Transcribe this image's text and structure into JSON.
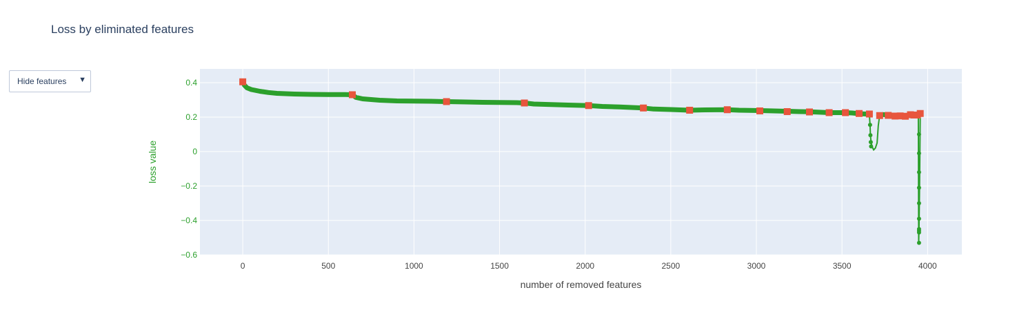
{
  "title": "Loss by eliminated features",
  "dropdown": {
    "label": "Hide features",
    "arrow": "▼"
  },
  "colors": {
    "line": "#2ca02c",
    "marker_highlight": "#e8553d",
    "plot_bg": "#e5ecf6",
    "grid": "#ffffff",
    "axis_text": "#444444",
    "ylabel_color": "#2ca02c",
    "title_color": "#2a3f5f"
  },
  "chart_data": {
    "type": "line",
    "title": "Loss by eliminated features",
    "xlabel": "number of removed features",
    "ylabel": "loss value",
    "xlim": [
      -250,
      4200
    ],
    "ylim": [
      -0.6,
      0.48
    ],
    "xticks": [
      0,
      500,
      1000,
      1500,
      2000,
      2500,
      3000,
      3500,
      4000
    ],
    "yticks": [
      0.4,
      0.2,
      0,
      -0.2,
      -0.4,
      -0.6
    ],
    "xtick_labels": [
      "0",
      "500",
      "1000",
      "1500",
      "2000",
      "2500",
      "3000",
      "3500",
      "4000"
    ],
    "ytick_labels": [
      "0.4",
      "0.2",
      "0",
      "−0.2",
      "−0.4",
      "−0.6"
    ],
    "series": [
      {
        "name": "loss",
        "x": [
          0,
          10,
          25,
          50,
          100,
          150,
          200,
          300,
          400,
          500,
          600,
          640,
          660,
          700,
          800,
          900,
          1000,
          1100,
          1190,
          1300,
          1400,
          1500,
          1600,
          1645,
          1700,
          1800,
          1900,
          2020,
          2100,
          2200,
          2340,
          2400,
          2500,
          2610,
          2700,
          2830,
          2900,
          3020,
          3100,
          3180,
          3250,
          3310,
          3380,
          3425,
          3470,
          3520,
          3560,
          3600,
          3640,
          3660,
          3664,
          3666,
          3670,
          3675,
          3685,
          3695,
          3705,
          3712,
          3720,
          3740,
          3770,
          3800,
          3820,
          3840,
          3860,
          3880,
          3900,
          3910,
          3920,
          3930,
          3940,
          3946,
          3948,
          3950,
          3952,
          3954,
          3956,
          3957
        ],
        "values": [
          0.405,
          0.385,
          0.37,
          0.36,
          0.35,
          0.343,
          0.338,
          0.334,
          0.332,
          0.331,
          0.331,
          0.33,
          0.315,
          0.306,
          0.298,
          0.294,
          0.293,
          0.292,
          0.29,
          0.288,
          0.286,
          0.285,
          0.284,
          0.282,
          0.276,
          0.273,
          0.27,
          0.267,
          0.262,
          0.259,
          0.253,
          0.247,
          0.244,
          0.24,
          0.242,
          0.243,
          0.24,
          0.238,
          0.236,
          0.234,
          0.232,
          0.231,
          0.228,
          0.226,
          0.226,
          0.226,
          0.224,
          0.22,
          0.218,
          0.215,
          0.153,
          0.095,
          0.055,
          0.03,
          0.01,
          0.02,
          0.05,
          0.15,
          0.21,
          0.215,
          0.212,
          0.208,
          0.205,
          0.205,
          0.207,
          0.21,
          0.215,
          0.217,
          0.212,
          0.208,
          0.215,
          0.22,
          -0.53,
          -0.45,
          -0.3,
          -0.12,
          0.1,
          0.22
        ]
      }
    ],
    "highlighted_points": {
      "x": [
        0,
        640,
        1190,
        1645,
        2020,
        2340,
        2610,
        2830,
        3020,
        3180,
        3310,
        3425,
        3520,
        3600,
        3660,
        3720,
        3770,
        3810,
        3840,
        3870,
        3900,
        3920,
        3940,
        3957
      ],
      "values": [
        0.405,
        0.33,
        0.29,
        0.282,
        0.267,
        0.253,
        0.24,
        0.243,
        0.236,
        0.232,
        0.23,
        0.226,
        0.226,
        0.221,
        0.218,
        0.209,
        0.21,
        0.206,
        0.207,
        0.205,
        0.214,
        0.212,
        0.212,
        0.221
      ]
    },
    "dot_points": {
      "x": [
        3664,
        3666,
        3668,
        3670,
        3950,
        3950,
        3950,
        3950,
        3950,
        3950,
        3950,
        3950,
        3950,
        3950
      ],
      "values": [
        0.155,
        0.095,
        0.055,
        0.03,
        -0.53,
        -0.46,
        -0.39,
        -0.3,
        -0.21,
        -0.12,
        -0.01,
        0.1,
        -0.47,
        -0.45
      ]
    }
  }
}
